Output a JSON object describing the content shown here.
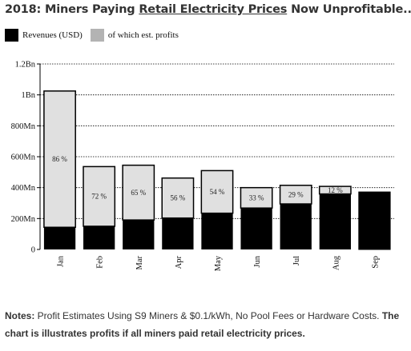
{
  "title": {
    "prefix": "2018: Miners Paying ",
    "underlined": "Retail Electricity Prices",
    "suffix": " Now Unprofitable..."
  },
  "legend": [
    {
      "label": "Revenues (USD)",
      "color": "#000000"
    },
    {
      "label": "of which est. profits",
      "color": "#b3b3b3"
    }
  ],
  "chart_data": {
    "type": "bar",
    "stacked": true,
    "categories": [
      "Jan",
      "Feb",
      "Mar",
      "Apr",
      "May",
      "Jun",
      "Jul",
      "Aug",
      "Sep"
    ],
    "series": [
      {
        "name": "Revenues (USD)",
        "values": [
          1025,
          536,
          545,
          462,
          510,
          400,
          415,
          408,
          372
        ]
      },
      {
        "name": "of which est. profits",
        "percent_labels": [
          "86 %",
          "72 %",
          "65 %",
          "56 %",
          "54 %",
          "33 %",
          "29 %",
          "12 %",
          ""
        ]
      }
    ],
    "profit_fraction": [
      0.86,
      0.72,
      0.65,
      0.56,
      0.54,
      0.33,
      0.29,
      0.12,
      0
    ],
    "y_ticks": [
      {
        "value": 0,
        "label": "0"
      },
      {
        "value": 200,
        "label": "200Mn"
      },
      {
        "value": 400,
        "label": "400Mn"
      },
      {
        "value": 600,
        "label": "600Mn"
      },
      {
        "value": 800,
        "label": "800Mn"
      },
      {
        "value": 1000,
        "label": "1Bn"
      },
      {
        "value": 1200,
        "label": "1.2Bn"
      }
    ],
    "ylim": [
      0,
      1200
    ],
    "grid": true,
    "colors": {
      "revenue": "#000000",
      "profit": "#e0e0e0",
      "grid": "#000000"
    }
  },
  "notes": {
    "label": "Notes:",
    "text": " Profit Estimates Using S9 Miners & $0.1/kWh, No Pool Fees or Hardware Costs. ",
    "bold_text": "The chart is illustrates profits if all miners paid retail electricity prices."
  }
}
